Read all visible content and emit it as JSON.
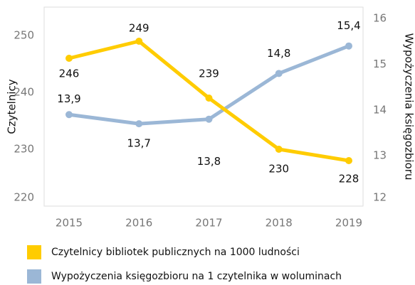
{
  "chart_data": {
    "type": "line",
    "y_label": "Czytelnicy",
    "y2_label": "Wypożyczenia księgozbioru",
    "categories": [
      "2015",
      "2016",
      "2017",
      "2018",
      "2019"
    ],
    "series": [
      {
        "name": "Czytelnicy bibliotek publicznych na 1000 ludności",
        "color": "#FFCC00",
        "values": [
          246,
          249,
          239,
          230,
          228
        ]
      },
      {
        "name": "Wypożyczenia księgozbioru na 1 czytelnika w woluminach",
        "color": "#9BB7D6",
        "axis": "y2",
        "values": [
          13.9,
          13.7,
          13.8,
          14.8,
          15.4
        ],
        "value_labels": [
          "13,9",
          "13,7",
          "13,8",
          "14,8",
          "15,4"
        ]
      }
    ],
    "ylim": [
      220,
      255
    ],
    "yticks": [
      220,
      230,
      240,
      250
    ],
    "y2lim": [
      11.9,
      16.25
    ],
    "y2ticks": [
      12,
      13,
      14,
      15,
      16
    ],
    "grid": false
  }
}
